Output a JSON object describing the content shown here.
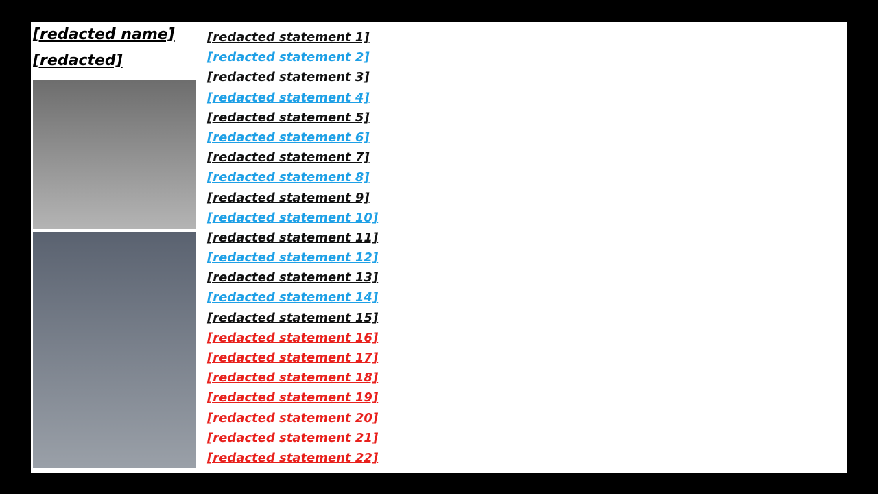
{
  "caption": {
    "line1": "[redacted name]",
    "line2": "[redacted]"
  },
  "colors": {
    "black": "#111111",
    "blue": "#1ea0e6",
    "red": "#e8201c"
  },
  "lines": [
    {
      "text": "[redacted statement 1]",
      "color": "black"
    },
    {
      "text": "[redacted statement 2]",
      "color": "blue"
    },
    {
      "text": "[redacted statement 3]",
      "color": "black"
    },
    {
      "text": "[redacted statement 4]",
      "color": "blue"
    },
    {
      "text": "[redacted statement 5]",
      "color": "black"
    },
    {
      "text": "[redacted statement 6]",
      "color": "blue"
    },
    {
      "text": "[redacted statement 7]",
      "color": "black"
    },
    {
      "text": "[redacted statement 8]",
      "color": "blue"
    },
    {
      "text": "[redacted statement 9]",
      "color": "black"
    },
    {
      "text": "[redacted statement 10]",
      "color": "blue"
    },
    {
      "text": "[redacted statement 11]",
      "color": "black"
    },
    {
      "text": "[redacted statement 12]",
      "color": "blue"
    },
    {
      "text": "[redacted statement 13]",
      "color": "black"
    },
    {
      "text": "[redacted statement 14]",
      "color": "blue"
    },
    {
      "text": "[redacted statement 15]",
      "color": "black"
    },
    {
      "text": "[redacted statement 16]",
      "color": "red"
    },
    {
      "text": "[redacted statement 17]",
      "color": "red"
    },
    {
      "text": "[redacted statement 18]",
      "color": "red"
    },
    {
      "text": "[redacted statement 19]",
      "color": "red"
    },
    {
      "text": "[redacted statement 20]",
      "color": "red"
    },
    {
      "text": "[redacted statement 21]",
      "color": "red"
    },
    {
      "text": "[redacted statement 22]",
      "color": "red"
    }
  ]
}
